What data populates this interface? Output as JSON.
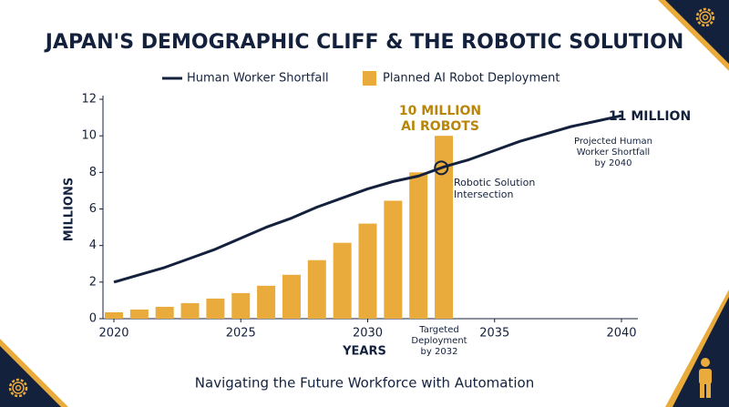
{
  "chart_data": {
    "type": "bar_line",
    "title": "JAPAN'S DEMOGRAPHIC CLIFF & THE ROBOTIC SOLUTION",
    "subtitle": "Navigating the Future Workforce with Automation",
    "x_label": "YEARS",
    "y_label": "MILLIONS",
    "xlim": [
      2020,
      2040
    ],
    "xticks": [
      2020,
      2025,
      2030,
      2035,
      2040
    ],
    "ylim": [
      0,
      12
    ],
    "yticks": [
      0,
      2,
      4,
      6,
      8,
      10,
      12
    ],
    "grid": false,
    "legend": "top",
    "series": [
      {
        "name": "Human Worker Shortfall",
        "type": "line",
        "color": "#14213d",
        "x": [
          2020,
          2021,
          2022,
          2023,
          2024,
          2025,
          2026,
          2027,
          2028,
          2029,
          2030,
          2031,
          2032,
          2033,
          2034,
          2035,
          2036,
          2037,
          2038,
          2039,
          2040
        ],
        "values": [
          2.0,
          2.4,
          2.8,
          3.3,
          3.8,
          4.4,
          5.0,
          5.5,
          6.1,
          6.6,
          7.1,
          7.5,
          7.8,
          8.3,
          8.7,
          9.2,
          9.7,
          10.1,
          10.5,
          10.8,
          11.1
        ]
      },
      {
        "name": "Planned AI Robot Deployment",
        "type": "bar",
        "color": "#e9ab3b",
        "x": [
          2020,
          2021,
          2022,
          2023,
          2024,
          2025,
          2026,
          2027,
          2028,
          2029,
          2030,
          2031,
          2032,
          2033
        ],
        "values": [
          0.35,
          0.5,
          0.65,
          0.85,
          1.1,
          1.4,
          1.8,
          2.4,
          3.2,
          4.15,
          5.2,
          6.45,
          8.0,
          10.0
        ]
      }
    ],
    "annotations": [
      {
        "lines": [
          "10 MILLION",
          "AI ROBOTS"
        ]
      },
      {
        "lines": [
          "11 MILLION"
        ]
      },
      {
        "lines": [
          "Projected Human",
          "Worker Shortfall",
          "by 2040"
        ]
      },
      {
        "lines": [
          "Robotic Solution",
          "Intersection"
        ]
      },
      {
        "lines": [
          "Targeted",
          "Deployment",
          "by 2032"
        ]
      }
    ],
    "intersection": {
      "x": 2032.9,
      "y": 8.25
    }
  }
}
